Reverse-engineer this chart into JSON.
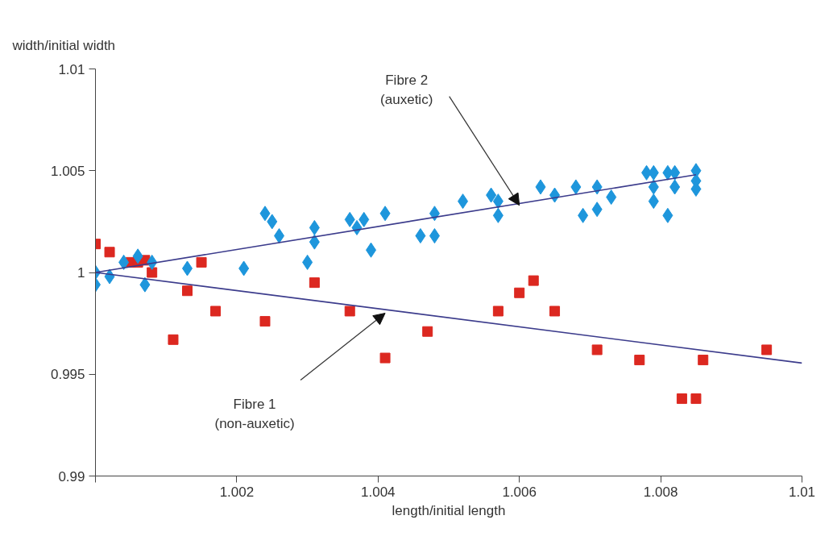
{
  "chart_data": {
    "type": "scatter",
    "xlabel": "length/initial length",
    "ylabel": "width/initial width",
    "xlim": [
      1,
      1.01
    ],
    "ylim": [
      0.99,
      1.01
    ],
    "xticks": [
      {
        "value": 1,
        "label": null
      },
      1.002,
      1.004,
      1.006,
      1.008,
      1.01
    ],
    "yticks": [
      0.99,
      0.995,
      1,
      1.005,
      1.01
    ],
    "grid": false,
    "series": [
      {
        "marker": "square",
        "color": "#dc2820",
        "x": [
          1.0,
          1.0002,
          1.0005,
          1.0006,
          1.0007,
          1.0008,
          1.0011,
          1.0013,
          1.0015,
          1.0017,
          1.0024,
          1.0031,
          1.0036,
          1.0041,
          1.0047,
          1.0057,
          1.006,
          1.0062,
          1.0065,
          1.0071,
          1.0077,
          1.0083,
          1.0085,
          1.0086,
          1.0095
        ],
        "values": [
          1.0014,
          1.001,
          1.0005,
          1.0005,
          1.0006,
          1.0,
          0.9967,
          0.9991,
          1.0005,
          0.9981,
          0.9976,
          0.9995,
          0.9981,
          0.9958,
          0.9971,
          0.9981,
          0.999,
          0.9996,
          0.9981,
          0.9962,
          0.9957,
          0.9938,
          0.9938,
          0.9957,
          0.9962
        ]
      },
      {
        "marker": "diamond",
        "color": "#1e96dc",
        "x": [
          1.0,
          1.0,
          1.0002,
          1.0004,
          1.0006,
          1.0007,
          1.0008,
          1.0013,
          1.0021,
          1.0024,
          1.0025,
          1.0026,
          1.003,
          1.0031,
          1.0031,
          1.0036,
          1.0037,
          1.0038,
          1.0039,
          1.0041,
          1.0046,
          1.0048,
          1.0048,
          1.0052,
          1.0056,
          1.0057,
          1.0057,
          1.0063,
          1.0065,
          1.0068,
          1.0069,
          1.0071,
          1.0071,
          1.0073,
          1.0078,
          1.0079,
          1.0079,
          1.0079,
          1.0081,
          1.0081,
          1.0082,
          1.0082,
          1.0085,
          1.0085,
          1.0085
        ],
        "values": [
          1.0,
          0.9994,
          0.9998,
          1.0005,
          1.0008,
          0.9994,
          1.0005,
          1.0002,
          1.0002,
          1.0029,
          1.0025,
          1.0018,
          1.0005,
          1.0015,
          1.0022,
          1.0026,
          1.0022,
          1.0026,
          1.0011,
          1.0029,
          1.0018,
          1.0018,
          1.0029,
          1.0035,
          1.0038,
          1.0035,
          1.0028,
          1.0042,
          1.0038,
          1.0042,
          1.0028,
          1.0031,
          1.0042,
          1.0037,
          1.0049,
          1.0049,
          1.0042,
          1.0035,
          1.0049,
          1.0028,
          1.0049,
          1.0042,
          1.005,
          1.0045,
          1.0041
        ]
      },
      {
        "type": "line",
        "color": "#3c3c8c",
        "x": [
          1.0,
          1.0085
        ],
        "values": [
          1.0,
          1.0048
        ]
      },
      {
        "type": "line",
        "color": "#3c3c8c",
        "x": [
          1.0,
          1.01
        ],
        "values": [
          1.0,
          0.99555
        ]
      }
    ],
    "annotations": [
      {
        "text": "Fibre 2\n(auxetic)",
        "x": 1.006,
        "y": 1.0033
      },
      {
        "text": "Fibre 1\n(non-auxetic)",
        "x": 1.0041,
        "y": 0.998
      }
    ]
  }
}
